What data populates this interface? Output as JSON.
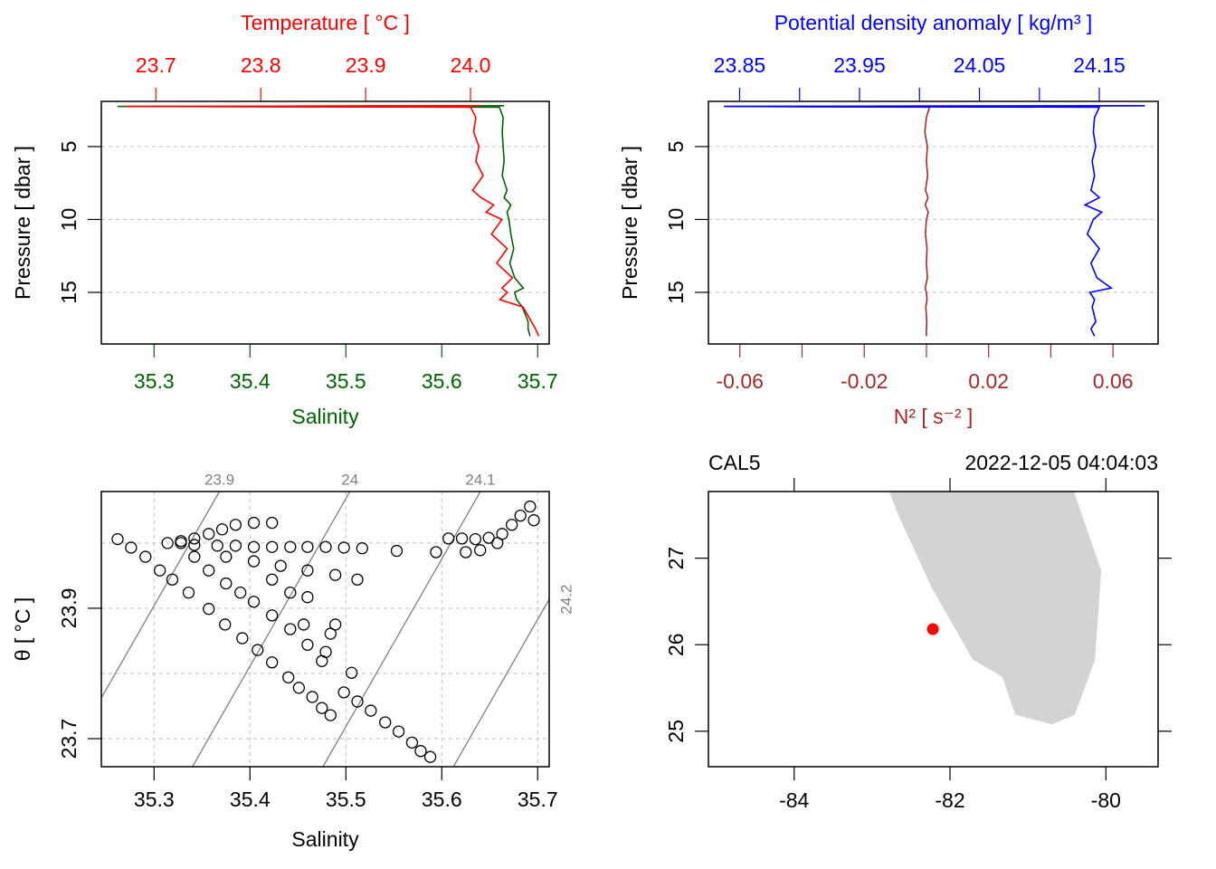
{
  "chart_data": [
    {
      "type": "profile",
      "x_label": "Salinity",
      "x2_label": "Temperature [ °C ]",
      "y_label": "Pressure [ dbar ]",
      "pressure": [
        2.2,
        2.25,
        2.3,
        3,
        4,
        5,
        6,
        7,
        8,
        8.5,
        9,
        9.5,
        10,
        11,
        12,
        13,
        14,
        14.7,
        15,
        15.5,
        16,
        17,
        17.5,
        18
      ],
      "series": [
        {
          "color": "#006400",
          "axis": "x",
          "values": [
            35.665,
            35.262,
            35.66,
            35.664,
            35.663,
            35.664,
            35.665,
            35.663,
            35.668,
            35.665,
            35.672,
            35.668,
            35.67,
            35.672,
            35.675,
            35.671,
            35.676,
            35.685,
            35.676,
            35.678,
            35.684,
            35.69,
            35.69,
            35.692
          ]
        },
        {
          "color": "#ff0000",
          "axis": "x2",
          "values": [
            24.01,
            23.671,
            24.0,
            24.005,
            24.003,
            24.008,
            24.005,
            24.012,
            24.002,
            24.01,
            24.022,
            24.015,
            24.03,
            24.02,
            24.035,
            24.025,
            24.04,
            24.03,
            24.035,
            24.028,
            24.05,
            24.058,
            24.062,
            24.065
          ]
        }
      ],
      "xlim": [
        35.245,
        35.712
      ],
      "xticks": [
        35.3,
        35.4,
        35.5,
        35.6,
        35.7
      ],
      "x2lim": [
        23.648,
        24.075
      ],
      "x2ticks": [
        23.7,
        23.8,
        23.9,
        {
          "value": 24,
          "label": "24.0"
        }
      ],
      "ylim": [
        18.54,
        1.9
      ],
      "yticks": [
        5,
        10,
        15
      ],
      "grid": true
    },
    {
      "type": "profile",
      "x_label": "N² [ s⁻² ]",
      "x2_label": "Potential density anomaly [ kg/m³ ]",
      "y_label": "Pressure [ dbar ]",
      "pressure": [
        2.2,
        2.25,
        2.3,
        3,
        4,
        5,
        6,
        7,
        8,
        8.5,
        9,
        9.5,
        10,
        11,
        12,
        13,
        14,
        14.7,
        15,
        15.5,
        16,
        17,
        17.5,
        18
      ],
      "series": [
        {
          "color": "#a52a2a",
          "axis": "x",
          "values": [
            0.068,
            -0.065,
            0.001,
            0,
            -0.0005,
            0.0003,
            0,
            0.0004,
            -0.0003,
            0.0005,
            -0.0004,
            0.0006,
            0,
            -0.0003,
            0.0002,
            0,
            0.0003,
            -0.0004,
            0,
            0.0002,
            -0.0002,
            0.0001,
            0,
            0
          ]
        },
        {
          "color": "#0000ff",
          "axis": "x2",
          "values": [
            24.188,
            23.837,
            24.15,
            24.146,
            24.145,
            24.147,
            24.144,
            24.146,
            24.143,
            24.15,
            24.138,
            24.152,
            24.145,
            24.14,
            24.15,
            24.143,
            24.148,
            24.16,
            24.142,
            24.146,
            24.144,
            24.147,
            24.143,
            24.146
          ]
        }
      ],
      "xlim": [
        -0.0701,
        0.0745
      ],
      "xticks": [
        -0.06,
        -0.02,
        0.02,
        0.06
      ],
      "xminor": [
        -0.04,
        0,
        0.04
      ],
      "x2lim": [
        23.824,
        24.199
      ],
      "x2ticks": [
        23.85,
        23.95,
        24.05,
        24.15
      ],
      "x2minor": [
        23.9,
        24.0,
        24.1
      ],
      "ylim": [
        18.54,
        1.9
      ],
      "yticks": [
        5,
        10,
        15
      ],
      "grid": true
    },
    {
      "type": "scatter",
      "x_label": "Salinity",
      "y_label": "θ [ °C ]",
      "x": [
        35.262,
        35.276,
        35.291,
        35.306,
        35.319,
        35.336,
        35.357,
        35.374,
        35.392,
        35.408,
        35.423,
        35.44,
        35.451,
        35.465,
        35.475,
        35.484,
        35.498,
        35.512,
        35.526,
        35.541,
        35.555,
        35.569,
        35.578,
        35.588,
        35.328,
        35.342,
        35.357,
        35.375,
        35.39,
        35.404,
        35.423,
        35.442,
        35.46,
        35.475,
        35.489,
        35.506,
        35.479,
        35.314,
        35.328,
        35.342,
        35.357,
        35.371,
        35.385,
        35.404,
        35.423,
        35.342,
        35.366,
        35.385,
        35.404,
        35.423,
        35.442,
        35.46,
        35.479,
        35.498,
        35.517,
        35.375,
        35.404,
        35.432,
        35.46,
        35.489,
        35.512,
        35.423,
        35.442,
        35.46,
        35.553,
        35.594,
        35.607,
        35.621,
        35.635,
        35.649,
        35.663,
        35.673,
        35.682,
        35.692,
        35.696,
        35.625,
        35.64,
        35.658,
        35.456,
        35.484
      ],
      "y": [
        24.006,
        23.993,
        23.979,
        23.958,
        23.944,
        23.924,
        23.899,
        23.875,
        23.854,
        23.836,
        23.817,
        23.794,
        23.778,
        23.764,
        23.747,
        23.736,
        23.771,
        23.757,
        23.743,
        23.725,
        23.711,
        23.694,
        23.681,
        23.672,
        24.0,
        23.979,
        23.958,
        23.938,
        23.924,
        23.91,
        23.889,
        23.868,
        23.844,
        23.819,
        23.875,
        23.801,
        23.833,
        24.0,
        24.003,
        24.007,
        24.014,
        24.021,
        24.028,
        24.031,
        24.031,
        23.997,
        23.996,
        23.996,
        23.994,
        23.994,
        23.994,
        23.994,
        23.994,
        23.993,
        23.992,
        23.979,
        23.972,
        23.965,
        23.958,
        23.951,
        23.944,
        23.944,
        23.924,
        23.917,
        23.988,
        23.986,
        24.007,
        24.007,
        24.006,
        24.008,
        24.014,
        24.028,
        24.042,
        24.056,
        24.035,
        23.986,
        23.989,
        24.0,
        23.875,
        23.861
      ],
      "xlim": [
        35.245,
        35.712
      ],
      "xticks": [
        35.3,
        35.4,
        35.5,
        35.6,
        35.7
      ],
      "ylim": [
        23.657,
        24.079
      ],
      "yticks": [
        23.7,
        23.9
      ],
      "ygrid": [
        23.7,
        23.8,
        23.9,
        24.0
      ],
      "isopycnals": [
        23.9,
        24,
        24.1,
        24.2
      ],
      "isopycnal_color": "#808080",
      "grid": true
    },
    {
      "type": "map",
      "station": "CAL5",
      "time": "2022-12-05 04:04:03",
      "xlim": [
        -85.1,
        -79.33
      ],
      "ylim": [
        24.59,
        27.77
      ],
      "xticks": [
        -84,
        -82,
        -80
      ],
      "yticks": [
        25,
        26,
        27
      ],
      "coastline": {
        "color": "#d3d3d3",
        "lon": [
          -82.78,
          -82.66,
          -82.23,
          -81.71,
          -81.33,
          -81.16,
          -80.69,
          -80.4,
          -80.14,
          -80.06,
          -80.41
        ],
        "lat": [
          27.77,
          27.49,
          26.65,
          25.83,
          25.63,
          25.19,
          25.08,
          25.19,
          25.82,
          26.86,
          27.77
        ]
      },
      "station_lon": -82.22,
      "station_lat": 26.18,
      "station_color": "#ff0000"
    }
  ]
}
